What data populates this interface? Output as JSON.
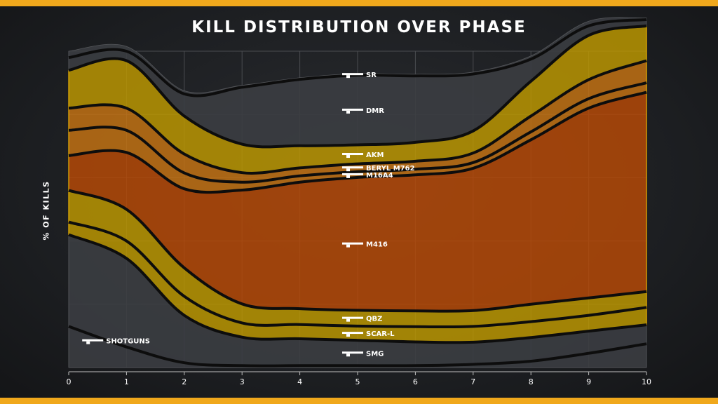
{
  "chart_data": {
    "type": "area",
    "title": "KILL DISTRIBUTION OVER PHASE",
    "xlabel": "",
    "ylabel": "% OF KILLS",
    "x_ticks": [
      "0",
      "1",
      "2",
      "3",
      "4",
      "5",
      "6",
      "7",
      "8",
      "9",
      "10"
    ],
    "xlim": [
      0,
      10
    ],
    "ylim": [
      0,
      100
    ],
    "grid": true,
    "x": [
      0,
      1,
      2,
      3,
      4,
      5,
      6,
      7,
      8,
      9,
      10
    ],
    "series": [
      {
        "name": "SHOTGUNS",
        "values": [
          13.0,
          6.5,
          1.5,
          0.6,
          0.6,
          0.6,
          0.6,
          1.0,
          2.0,
          4.5,
          7.5
        ]
      },
      {
        "name": "SMG",
        "values": [
          29.0,
          28.0,
          15.0,
          9.0,
          8.5,
          8.0,
          7.5,
          7.0,
          7.5,
          7.0,
          6.0
        ]
      },
      {
        "name": "SCAR-L",
        "values": [
          4.0,
          5.5,
          6.0,
          4.5,
          4.5,
          4.5,
          4.8,
          5.0,
          5.0,
          5.0,
          5.5
        ]
      },
      {
        "name": "QBZ",
        "values": [
          10.0,
          10.0,
          9.0,
          6.0,
          5.0,
          5.0,
          5.0,
          5.0,
          5.5,
          5.5,
          5.0
        ]
      },
      {
        "name": "M416",
        "values": [
          11.0,
          18.0,
          25.0,
          36.0,
          40.0,
          42.0,
          43.0,
          45.0,
          52.0,
          60.0,
          63.0
        ]
      },
      {
        "name": "M16A4",
        "values": [
          8.0,
          7.0,
          5.0,
          2.5,
          2.0,
          1.8,
          1.8,
          1.8,
          2.5,
          3.0,
          3.0
        ]
      },
      {
        "name": "BERYL M762",
        "values": [
          7.0,
          7.0,
          6.0,
          3.0,
          2.5,
          2.5,
          2.5,
          3.0,
          5.0,
          6.0,
          7.0
        ]
      },
      {
        "name": "AKM",
        "values": [
          12.0,
          15.0,
          12.0,
          9.0,
          7.0,
          6.0,
          6.0,
          7.0,
          11.0,
          14.0,
          11.0
        ]
      },
      {
        "name": "DMR",
        "values": [
          4.0,
          3.0,
          7.0,
          18.0,
          21.0,
          22.0,
          21.0,
          18.0,
          7.0,
          3.0,
          2.0
        ]
      },
      {
        "name": "SR",
        "values": [
          2.0,
          1.5,
          1.0,
          0.6,
          0.5,
          0.5,
          0.5,
          0.6,
          1.0,
          1.5,
          0.5
        ]
      }
    ],
    "colors": {
      "gray": "#3b3d41",
      "yellow": "#bf9a00",
      "orange_light": "#c77412",
      "orange_dark": "#b94a06",
      "edge": "#f0b400",
      "divider": "#0d0d0d",
      "frame": "#f0a81c"
    },
    "series_fill": [
      "gray",
      "gray",
      "yellow",
      "yellow",
      "orange_dark",
      "orange_light",
      "orange_light",
      "yellow",
      "gray",
      "gray"
    ]
  }
}
